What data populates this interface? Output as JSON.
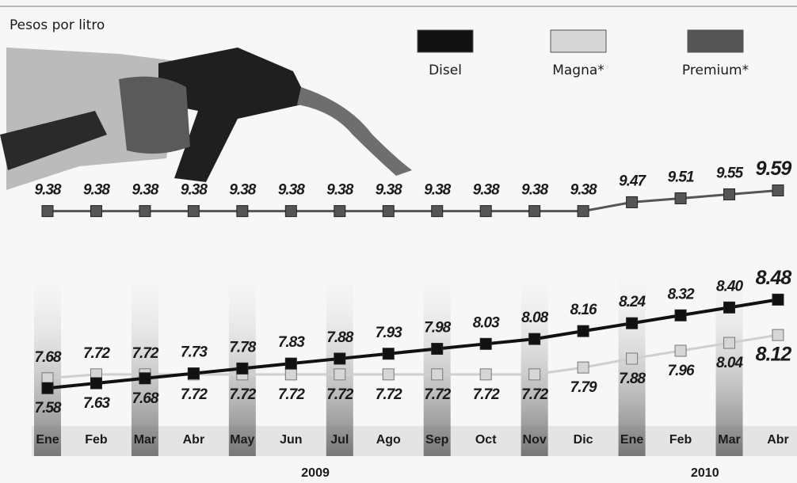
{
  "chart_data": {
    "type": "line",
    "y_label": "Pesos por litro",
    "categories": [
      "Ene",
      "Feb",
      "Mar",
      "Abr",
      "May",
      "Jun",
      "Jul",
      "Ago",
      "Sep",
      "Oct",
      "Nov",
      "Dic",
      "Ene",
      "Feb",
      "Mar",
      "Abr"
    ],
    "year_labels": [
      "2009",
      "2010"
    ],
    "ylim": [
      7.3,
      9.9
    ],
    "series": [
      {
        "name": "Disel",
        "color": "#111111",
        "values": [
          7.58,
          7.63,
          7.68,
          7.73,
          7.78,
          7.83,
          7.88,
          7.93,
          7.98,
          8.03,
          8.08,
          8.16,
          8.24,
          8.32,
          8.4,
          8.48
        ],
        "value_labels": [
          "7.58",
          "7.63",
          "7.68",
          "7.73",
          "7.78",
          "7.83",
          "7.88",
          "7.93",
          "7.98",
          "8.03",
          "8.08",
          "8.16",
          "8.24",
          "8.32",
          "8.40",
          "8.48"
        ]
      },
      {
        "name": "Magna*",
        "color": "#d6d6d6",
        "values": [
          7.68,
          7.72,
          7.72,
          7.72,
          7.72,
          7.72,
          7.72,
          7.72,
          7.72,
          7.72,
          7.72,
          7.79,
          7.88,
          7.96,
          8.04,
          8.12
        ],
        "value_labels": [
          "7.68",
          "7.72",
          "7.72",
          "7.72",
          "7.72",
          "7.72",
          "7.72",
          "7.72",
          "7.72",
          "7.72",
          "7.72",
          "7.79",
          "7.88",
          "7.96",
          "8.04",
          "8.12"
        ]
      },
      {
        "name": "Premium*",
        "color": "#555555",
        "values": [
          9.38,
          9.38,
          9.38,
          9.38,
          9.38,
          9.38,
          9.38,
          9.38,
          9.38,
          9.38,
          9.38,
          9.38,
          9.47,
          9.51,
          9.55,
          9.59
        ],
        "value_labels": [
          "9.38",
          "9.38",
          "9.38",
          "9.38",
          "9.38",
          "9.38",
          "9.38",
          "9.38",
          "9.38",
          "9.38",
          "9.38",
          "9.38",
          "9.47",
          "9.51",
          "9.55",
          "9.59"
        ]
      }
    ]
  }
}
